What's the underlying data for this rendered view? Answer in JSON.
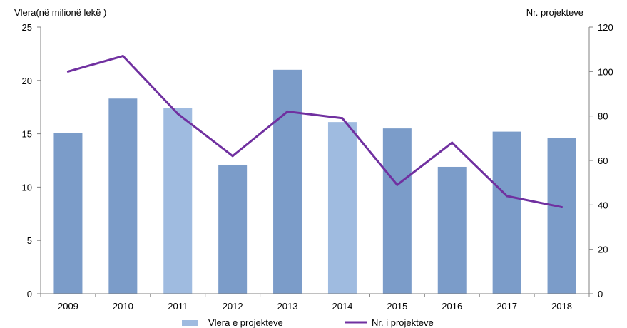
{
  "chart_data": {
    "type": "bar",
    "title": "",
    "categories": [
      "2009",
      "2010",
      "2011",
      "2012",
      "2013",
      "2014",
      "2015",
      "2016",
      "2017",
      "2018"
    ],
    "series": [
      {
        "name": "Vlera e projekteve",
        "type": "bar",
        "axis": "left",
        "values": [
          15.1,
          18.3,
          17.4,
          12.1,
          21.0,
          16.1,
          15.5,
          11.9,
          15.2,
          14.6
        ]
      },
      {
        "name": "Nr. i projekteve",
        "type": "line",
        "axis": "right",
        "values": [
          100,
          107,
          81,
          62,
          82,
          79,
          49,
          68,
          44,
          39
        ]
      }
    ],
    "ylabel_left": "Vlera(në milionë lekë )",
    "ylabel_right": "Nr. projekteve",
    "ylim_left": [
      0,
      25
    ],
    "yticks_left": [
      "0",
      "5",
      "10",
      "15",
      "20",
      "25"
    ],
    "ylim_right": [
      0,
      120
    ],
    "yticks_right": [
      "0",
      "20",
      "40",
      "60",
      "80",
      "100",
      "120"
    ],
    "grid": false,
    "legend_position": "bottom",
    "colors": {
      "bar": "#7B9CC9",
      "bar_highlight": "#9FBBE0",
      "line": "#7030A0",
      "axis": "#808080"
    }
  }
}
